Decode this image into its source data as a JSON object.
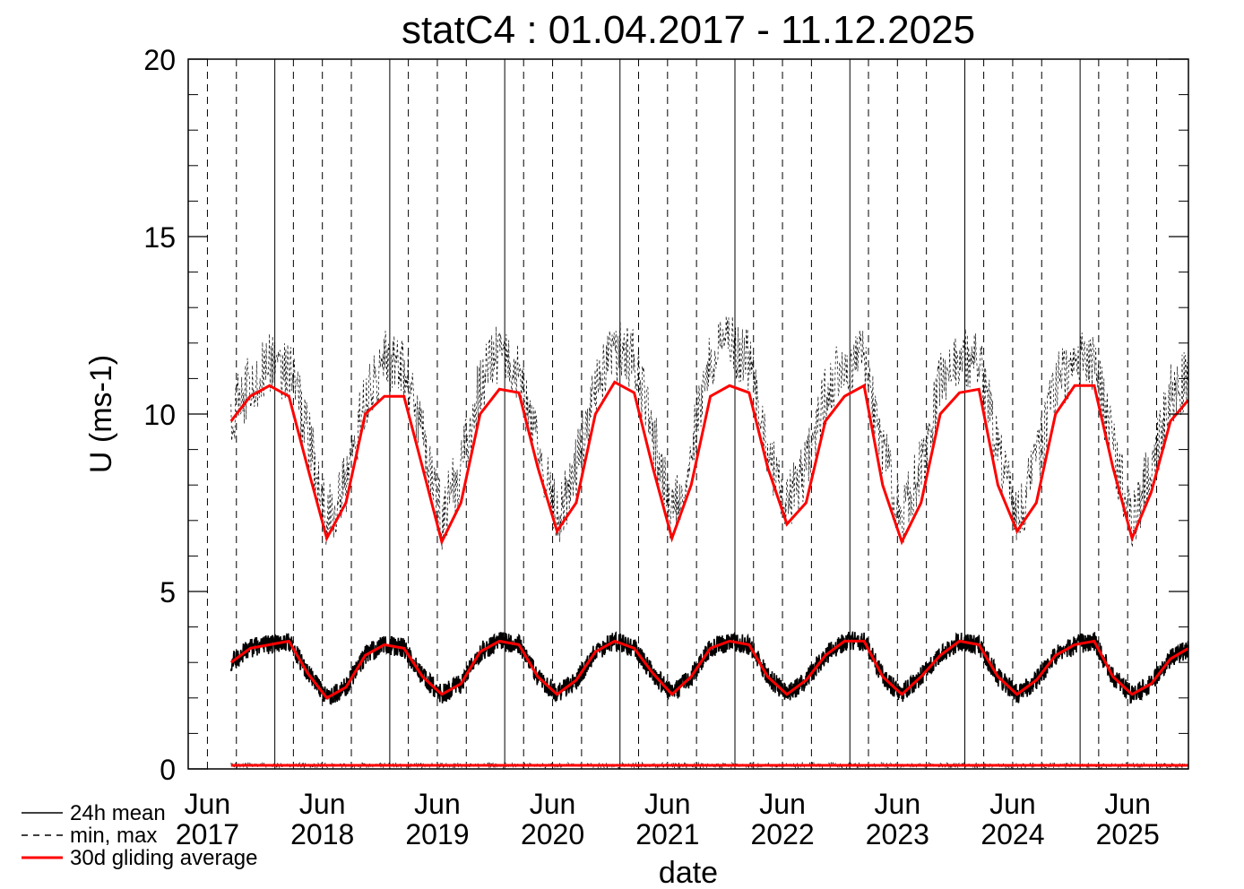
{
  "chart_data": {
    "type": "line",
    "title": "statC4 : 01.04.2017 - 11.12.2025",
    "xlabel": "date",
    "ylabel": "U (ms-1)",
    "ylim": [
      0,
      20
    ],
    "y_ticks": [
      0,
      5,
      10,
      15,
      20
    ],
    "x_range": [
      "2017-04-01",
      "2025-12-11"
    ],
    "x_ticks": [
      {
        "date": "2017-06-01",
        "month": "Jun",
        "year": "2017"
      },
      {
        "date": "2018-06-01",
        "month": "Jun",
        "year": "2018"
      },
      {
        "date": "2019-06-01",
        "month": "Jun",
        "year": "2019"
      },
      {
        "date": "2020-06-01",
        "month": "Jun",
        "year": "2020"
      },
      {
        "date": "2021-06-01",
        "month": "Jun",
        "year": "2021"
      },
      {
        "date": "2022-06-01",
        "month": "Jun",
        "year": "2022"
      },
      {
        "date": "2023-06-01",
        "month": "Jun",
        "year": "2023"
      },
      {
        "date": "2024-06-01",
        "month": "Jun",
        "year": "2024"
      },
      {
        "date": "2025-06-01",
        "month": "Jun",
        "year": "2025"
      }
    ],
    "grid": "vertical lines: solid at 1 January, dashed at 1 March, 1 June, 1 September",
    "data_start": "2017-08-15",
    "series": [
      {
        "name": "24h mean",
        "color": "#000000",
        "dash": "solid",
        "x": [
          "2017-08-15",
          "2017-10-15",
          "2017-12-15",
          "2018-02-15",
          "2018-04-15",
          "2018-06-15",
          "2018-08-15",
          "2018-10-15",
          "2018-12-15",
          "2019-02-15",
          "2019-04-15",
          "2019-06-15",
          "2019-08-15",
          "2019-10-15",
          "2019-12-15",
          "2020-02-15",
          "2020-04-15",
          "2020-06-15",
          "2020-08-15",
          "2020-10-15",
          "2020-12-15",
          "2021-02-15",
          "2021-04-15",
          "2021-06-15",
          "2021-08-15",
          "2021-10-15",
          "2021-12-15",
          "2022-02-15",
          "2022-04-15",
          "2022-06-15",
          "2022-08-15",
          "2022-10-15",
          "2022-12-15",
          "2023-02-15",
          "2023-04-15",
          "2023-06-15",
          "2023-08-15",
          "2023-10-15",
          "2023-12-15",
          "2024-02-15",
          "2024-04-15",
          "2024-06-15",
          "2024-08-15",
          "2024-10-15",
          "2024-12-15",
          "2025-02-15",
          "2025-04-15",
          "2025-06-15",
          "2025-08-15",
          "2025-10-15",
          "2025-12-11"
        ],
        "values": [
          3.0,
          3.4,
          3.5,
          3.6,
          2.7,
          2.0,
          2.3,
          3.2,
          3.5,
          3.4,
          2.6,
          2.1,
          2.4,
          3.3,
          3.6,
          3.5,
          2.6,
          2.1,
          2.5,
          3.3,
          3.6,
          3.4,
          2.7,
          2.1,
          2.6,
          3.4,
          3.6,
          3.5,
          2.6,
          2.1,
          2.5,
          3.2,
          3.6,
          3.6,
          2.6,
          2.1,
          2.6,
          3.2,
          3.6,
          3.5,
          2.6,
          2.1,
          2.5,
          3.2,
          3.5,
          3.6,
          2.6,
          2.1,
          2.4,
          3.1,
          3.4
        ]
      },
      {
        "name": "min, max",
        "color": "#000000",
        "dash": "dashed",
        "x": [
          "2017-08-15",
          "2017-10-15",
          "2017-12-15",
          "2018-02-15",
          "2018-04-15",
          "2018-06-15",
          "2018-08-15",
          "2018-10-15",
          "2018-12-15",
          "2019-02-15",
          "2019-04-15",
          "2019-06-15",
          "2019-08-15",
          "2019-10-15",
          "2019-12-15",
          "2020-02-15",
          "2020-04-15",
          "2020-06-15",
          "2020-08-15",
          "2020-10-15",
          "2020-12-15",
          "2021-02-15",
          "2021-04-15",
          "2021-06-15",
          "2021-08-15",
          "2021-10-15",
          "2021-12-15",
          "2022-02-15",
          "2022-04-15",
          "2022-06-15",
          "2022-08-15",
          "2022-10-15",
          "2022-12-15",
          "2023-02-15",
          "2023-04-15",
          "2023-06-15",
          "2023-08-15",
          "2023-10-15",
          "2023-12-15",
          "2024-02-15",
          "2024-04-15",
          "2024-06-15",
          "2024-08-15",
          "2024-10-15",
          "2024-12-15",
          "2025-02-15",
          "2025-04-15",
          "2025-06-15",
          "2025-08-15",
          "2025-10-15",
          "2025-12-11"
        ],
        "max_values": [
          10.0,
          10.8,
          11.5,
          11.2,
          9.5,
          7.0,
          8.0,
          10.5,
          11.5,
          11.3,
          9.5,
          7.0,
          8.5,
          10.8,
          11.8,
          11.2,
          9.0,
          7.0,
          8.5,
          10.8,
          11.8,
          11.5,
          9.5,
          7.0,
          9.0,
          11.5,
          12.0,
          11.5,
          9.0,
          7.5,
          8.5,
          10.5,
          11.5,
          11.5,
          9.0,
          7.0,
          8.5,
          10.8,
          11.5,
          11.5,
          9.0,
          7.0,
          8.5,
          10.8,
          11.5,
          11.5,
          9.0,
          7.0,
          8.5,
          10.5,
          11.0
        ],
        "min_values": [
          0.1,
          0.1,
          0.1,
          0.1,
          0.1,
          0.1,
          0.1,
          0.1,
          0.1,
          0.1,
          0.1,
          0.1,
          0.1,
          0.1,
          0.1,
          0.1,
          0.1,
          0.1,
          0.1,
          0.1,
          0.1,
          0.1,
          0.1,
          0.1,
          0.1,
          0.1,
          0.1,
          0.1,
          0.1,
          0.1,
          0.1,
          0.1,
          0.1,
          0.1,
          0.1,
          0.1,
          0.1,
          0.1,
          0.1,
          0.1,
          0.1,
          0.1,
          0.1,
          0.1,
          0.1,
          0.1,
          0.1,
          0.1,
          0.1,
          0.1,
          0.1
        ]
      },
      {
        "name": "30d gliding average",
        "color": "#ff0000",
        "dash": "solid",
        "x": [
          "2017-08-15",
          "2017-10-15",
          "2017-12-15",
          "2018-02-15",
          "2018-04-15",
          "2018-06-15",
          "2018-08-15",
          "2018-10-15",
          "2018-12-15",
          "2019-02-15",
          "2019-04-15",
          "2019-06-15",
          "2019-08-15",
          "2019-10-15",
          "2019-12-15",
          "2020-02-15",
          "2020-04-15",
          "2020-06-15",
          "2020-08-15",
          "2020-10-15",
          "2020-12-15",
          "2021-02-15",
          "2021-04-15",
          "2021-06-15",
          "2021-08-15",
          "2021-10-15",
          "2021-12-15",
          "2022-02-15",
          "2022-04-15",
          "2022-06-15",
          "2022-08-15",
          "2022-10-15",
          "2022-12-15",
          "2023-02-15",
          "2023-04-15",
          "2023-06-15",
          "2023-08-15",
          "2023-10-15",
          "2023-12-15",
          "2024-02-15",
          "2024-04-15",
          "2024-06-15",
          "2024-08-15",
          "2024-10-15",
          "2024-12-15",
          "2025-02-15",
          "2025-04-15",
          "2025-06-15",
          "2025-08-15",
          "2025-10-15",
          "2025-12-11"
        ],
        "mean_values": [
          3.0,
          3.4,
          3.5,
          3.6,
          2.7,
          2.0,
          2.3,
          3.2,
          3.5,
          3.4,
          2.6,
          2.1,
          2.4,
          3.3,
          3.6,
          3.5,
          2.6,
          2.1,
          2.5,
          3.3,
          3.6,
          3.4,
          2.7,
          2.1,
          2.6,
          3.4,
          3.6,
          3.5,
          2.6,
          2.1,
          2.5,
          3.2,
          3.6,
          3.6,
          2.6,
          2.1,
          2.6,
          3.2,
          3.6,
          3.5,
          2.6,
          2.1,
          2.5,
          3.2,
          3.5,
          3.6,
          2.6,
          2.1,
          2.4,
          3.1,
          3.4
        ],
        "max_values": [
          9.8,
          10.5,
          10.8,
          10.5,
          8.5,
          6.5,
          7.5,
          10.0,
          10.5,
          10.5,
          8.5,
          6.4,
          7.5,
          10.0,
          10.7,
          10.6,
          8.5,
          6.7,
          7.5,
          10.0,
          10.9,
          10.6,
          8.5,
          6.5,
          8.0,
          10.5,
          10.8,
          10.6,
          8.5,
          6.9,
          7.5,
          9.8,
          10.5,
          10.8,
          8.0,
          6.4,
          7.5,
          10.0,
          10.6,
          10.7,
          8.0,
          6.7,
          7.5,
          10.0,
          10.8,
          10.8,
          8.5,
          6.5,
          7.8,
          9.8,
          10.4
        ],
        "min_values": [
          0.1,
          0.1,
          0.1,
          0.1,
          0.1,
          0.1,
          0.1,
          0.1,
          0.1,
          0.1,
          0.1,
          0.1,
          0.1,
          0.1,
          0.1,
          0.1,
          0.1,
          0.1,
          0.1,
          0.1,
          0.1,
          0.1,
          0.1,
          0.1,
          0.1,
          0.1,
          0.1,
          0.1,
          0.1,
          0.1,
          0.1,
          0.1,
          0.1,
          0.1,
          0.1,
          0.1,
          0.1,
          0.1,
          0.1,
          0.1,
          0.1,
          0.1,
          0.1,
          0.1,
          0.1,
          0.1,
          0.1,
          0.1,
          0.1,
          0.1,
          0.1
        ]
      }
    ],
    "legend": {
      "placement": "bottom-left",
      "entries": [
        {
          "label": "24h mean",
          "color": "#000000",
          "dash": "solid"
        },
        {
          "label": "min, max",
          "color": "#000000",
          "dash": "dashed"
        },
        {
          "label": "30d gliding average",
          "color": "#ff0000",
          "dash": "solid"
        }
      ]
    }
  }
}
